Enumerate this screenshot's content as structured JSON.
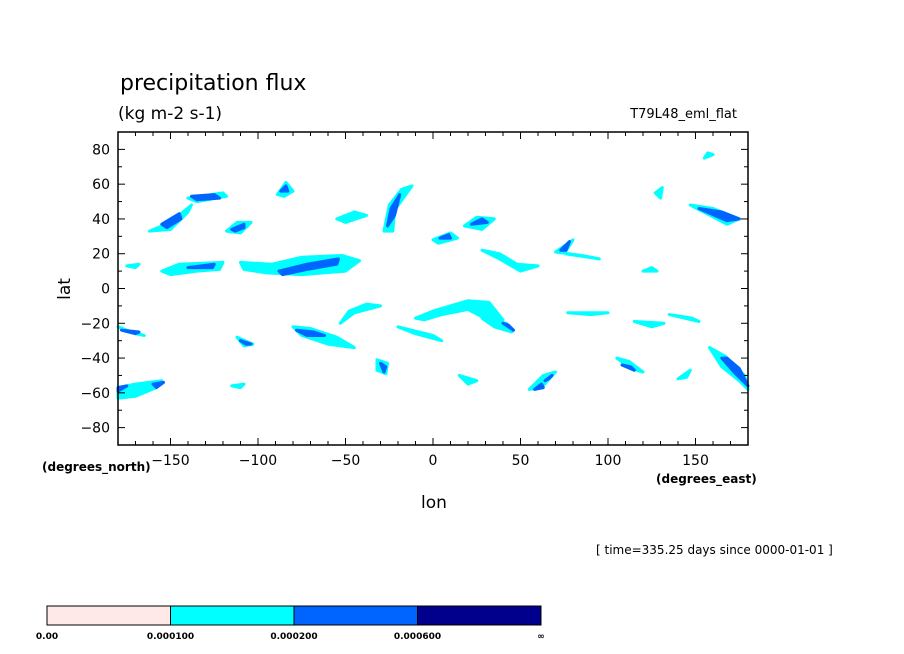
{
  "chart_data": {
    "type": "contour-map",
    "title": "precipitation flux",
    "units": "(kg m-2 s-1)",
    "run_label": "T79L48_eml_flat",
    "xlabel": "lon",
    "ylabel": "lat",
    "x_units_label": "(degrees_east)",
    "y_units_label": "(degrees_north)",
    "time_label": "[ time=335.25 days since 0000-01-01 ]",
    "xlim": [
      -180,
      180
    ],
    "ylim": [
      -90,
      90
    ],
    "x_ticks": [
      -150,
      -100,
      -50,
      0,
      50,
      100,
      150
    ],
    "x_tick_labels": [
      "−150",
      "−100",
      "−50",
      "0",
      "50",
      "100",
      "150"
    ],
    "y_ticks": [
      80,
      60,
      40,
      20,
      0,
      -20,
      -40,
      -60,
      -80
    ],
    "y_tick_labels": [
      "80",
      "60",
      "40",
      "20",
      "0",
      "−20",
      "−40",
      "−60",
      "−80"
    ],
    "grid": false,
    "colorbar": {
      "levels": [
        "0.00",
        "0.000100",
        "0.000200",
        "0.000600",
        "∞"
      ],
      "colors": [
        "#ffe8e8",
        "#00ffff",
        "#0064ff",
        "#00008c"
      ]
    },
    "regions": [
      {
        "level": 1,
        "pts": [
          [
            -140,
            52
          ],
          [
            -120,
            55
          ],
          [
            -118,
            53
          ],
          [
            -135,
            50
          ]
        ]
      },
      {
        "level": 2,
        "pts": [
          [
            -138,
            53
          ],
          [
            -125,
            54
          ],
          [
            -122,
            52
          ],
          [
            -135,
            51
          ]
        ]
      },
      {
        "level": 1,
        "pts": [
          [
            -162,
            33
          ],
          [
            -150,
            38
          ],
          [
            -138,
            48
          ],
          [
            -140,
            44
          ],
          [
            -150,
            34
          ]
        ]
      },
      {
        "level": 2,
        "pts": [
          [
            -155,
            37
          ],
          [
            -145,
            43
          ],
          [
            -144,
            40
          ],
          [
            -152,
            35
          ]
        ]
      },
      {
        "level": 1,
        "pts": [
          [
            -118,
            33
          ],
          [
            -112,
            38
          ],
          [
            -104,
            38
          ],
          [
            -110,
            32
          ]
        ]
      },
      {
        "level": 2,
        "pts": [
          [
            -115,
            34
          ],
          [
            -108,
            37
          ],
          [
            -108,
            35
          ],
          [
            -113,
            33
          ]
        ]
      },
      {
        "level": 1,
        "pts": [
          [
            -89,
            54
          ],
          [
            -84,
            61
          ],
          [
            -80,
            56
          ],
          [
            -85,
            53
          ]
        ]
      },
      {
        "level": 2,
        "pts": [
          [
            -87,
            56
          ],
          [
            -84,
            59
          ],
          [
            -83,
            56
          ]
        ]
      },
      {
        "level": 1,
        "pts": [
          [
            -155,
            10
          ],
          [
            -145,
            14
          ],
          [
            -120,
            15
          ],
          [
            -122,
            11
          ],
          [
            -135,
            10
          ],
          [
            -150,
            8
          ]
        ]
      },
      {
        "level": 2,
        "pts": [
          [
            -140,
            12
          ],
          [
            -125,
            14
          ],
          [
            -126,
            12
          ]
        ]
      },
      {
        "level": 1,
        "pts": [
          [
            -110,
            15
          ],
          [
            -92,
            14
          ],
          [
            -75,
            18
          ],
          [
            -52,
            19
          ],
          [
            -42,
            16
          ],
          [
            -50,
            10
          ],
          [
            -75,
            8
          ],
          [
            -95,
            9
          ],
          [
            -108,
            11
          ]
        ]
      },
      {
        "level": 2,
        "pts": [
          [
            -88,
            10
          ],
          [
            -72,
            14
          ],
          [
            -54,
            17
          ],
          [
            -55,
            14
          ],
          [
            -72,
            11
          ],
          [
            -86,
            8
          ]
        ]
      },
      {
        "level": 1,
        "pts": [
          [
            -28,
            33
          ],
          [
            -25,
            48
          ],
          [
            -18,
            57
          ],
          [
            -12,
            59
          ],
          [
            -22,
            45
          ],
          [
            -23,
            33
          ]
        ]
      },
      {
        "level": 2,
        "pts": [
          [
            -26,
            36
          ],
          [
            -24,
            46
          ],
          [
            -19,
            54
          ],
          [
            -22,
            42
          ]
        ]
      },
      {
        "level": 1,
        "pts": [
          [
            -55,
            40
          ],
          [
            -45,
            44
          ],
          [
            -38,
            42
          ],
          [
            -50,
            38
          ]
        ]
      },
      {
        "level": 1,
        "pts": [
          [
            0,
            28
          ],
          [
            10,
            32
          ],
          [
            14,
            29
          ],
          [
            3,
            26
          ]
        ]
      },
      {
        "level": 2,
        "pts": [
          [
            4,
            29
          ],
          [
            9,
            31
          ],
          [
            10,
            29
          ]
        ]
      },
      {
        "level": 1,
        "pts": [
          [
            18,
            36
          ],
          [
            25,
            41
          ],
          [
            35,
            40
          ],
          [
            28,
            34
          ]
        ]
      },
      {
        "level": 2,
        "pts": [
          [
            22,
            37
          ],
          [
            28,
            40
          ],
          [
            31,
            38
          ]
        ]
      },
      {
        "level": 1,
        "pts": [
          [
            28,
            22
          ],
          [
            38,
            17
          ],
          [
            50,
            10
          ],
          [
            60,
            13
          ],
          [
            48,
            14
          ],
          [
            38,
            20
          ]
        ]
      },
      {
        "level": 1,
        "pts": [
          [
            70,
            21
          ],
          [
            80,
            28
          ],
          [
            75,
            20
          ],
          [
            95,
            17
          ],
          [
            85,
            19
          ]
        ]
      },
      {
        "level": 2,
        "pts": [
          [
            73,
            22
          ],
          [
            78,
            27
          ],
          [
            76,
            22
          ]
        ]
      },
      {
        "level": 1,
        "pts": [
          [
            120,
            10
          ],
          [
            125,
            12
          ],
          [
            128,
            10
          ]
        ]
      },
      {
        "level": 1,
        "pts": [
          [
            147,
            48
          ],
          [
            160,
            46
          ],
          [
            175,
            40
          ],
          [
            168,
            37
          ]
        ]
      },
      {
        "level": 2,
        "pts": [
          [
            152,
            46
          ],
          [
            165,
            44
          ],
          [
            175,
            40
          ],
          [
            168,
            39
          ]
        ]
      },
      {
        "level": 1,
        "pts": [
          [
            -170,
            12
          ],
          [
            -175,
            13
          ],
          [
            -168,
            14
          ]
        ]
      },
      {
        "level": 1,
        "pts": [
          [
            -53,
            -20
          ],
          [
            -45,
            -14
          ],
          [
            -30,
            -10
          ],
          [
            -38,
            -9
          ],
          [
            -48,
            -13
          ]
        ]
      },
      {
        "level": 1,
        "pts": [
          [
            -10,
            -17
          ],
          [
            0,
            -13
          ],
          [
            20,
            -7
          ],
          [
            32,
            -8
          ],
          [
            40,
            -18
          ],
          [
            35,
            -20
          ],
          [
            20,
            -12
          ],
          [
            5,
            -15
          ],
          [
            -5,
            -18
          ]
        ]
      },
      {
        "level": 1,
        "pts": [
          [
            28,
            -17
          ],
          [
            35,
            -22
          ],
          [
            45,
            -25
          ],
          [
            42,
            -20
          ]
        ]
      },
      {
        "level": 2,
        "pts": [
          [
            40,
            -20
          ],
          [
            46,
            -24
          ],
          [
            43,
            -21
          ]
        ]
      },
      {
        "level": 1,
        "pts": [
          [
            -180,
            -22
          ],
          [
            -170,
            -26
          ],
          [
            -165,
            -27
          ],
          [
            -175,
            -24
          ]
        ]
      },
      {
        "level": 2,
        "pts": [
          [
            -178,
            -24
          ],
          [
            -170,
            -26
          ],
          [
            -168,
            -25
          ]
        ]
      },
      {
        "level": 1,
        "pts": [
          [
            -112,
            -28
          ],
          [
            -103,
            -32
          ],
          [
            -108,
            -33
          ]
        ]
      },
      {
        "level": 2,
        "pts": [
          [
            -110,
            -30
          ],
          [
            -104,
            -32
          ],
          [
            -107,
            -32
          ]
        ]
      },
      {
        "level": 1,
        "pts": [
          [
            -80,
            -22
          ],
          [
            -70,
            -23
          ],
          [
            -55,
            -28
          ],
          [
            -45,
            -34
          ],
          [
            -60,
            -32
          ],
          [
            -75,
            -27
          ]
        ]
      },
      {
        "level": 2,
        "pts": [
          [
            -78,
            -24
          ],
          [
            -68,
            -25
          ],
          [
            -62,
            -27
          ],
          [
            -72,
            -27
          ]
        ]
      },
      {
        "level": 1,
        "pts": [
          [
            -20,
            -22
          ],
          [
            -10,
            -26
          ],
          [
            5,
            -30
          ],
          [
            0,
            -27
          ]
        ]
      },
      {
        "level": 1,
        "pts": [
          [
            -32,
            -41
          ],
          [
            -26,
            -43
          ],
          [
            -27,
            -49
          ],
          [
            -32,
            -47
          ]
        ]
      },
      {
        "level": 2,
        "pts": [
          [
            -30,
            -43
          ],
          [
            -27,
            -45
          ],
          [
            -28,
            -48
          ]
        ]
      },
      {
        "level": 1,
        "pts": [
          [
            -115,
            -56
          ],
          [
            -110,
            -57
          ],
          [
            -108,
            -55
          ]
        ]
      },
      {
        "level": 1,
        "pts": [
          [
            -180,
            -57
          ],
          [
            -170,
            -55
          ],
          [
            -155,
            -53
          ],
          [
            -158,
            -57
          ],
          [
            -170,
            -62
          ],
          [
            -180,
            -63
          ]
        ]
      },
      {
        "level": 2,
        "pts": [
          [
            -160,
            -55
          ],
          [
            -154,
            -54
          ],
          [
            -158,
            -57
          ]
        ]
      },
      {
        "level": 2,
        "pts": [
          [
            -180,
            -57
          ],
          [
            -175,
            -56
          ],
          [
            -180,
            -59
          ]
        ]
      },
      {
        "level": 1,
        "pts": [
          [
            15,
            -50
          ],
          [
            25,
            -53
          ],
          [
            20,
            -55
          ]
        ]
      },
      {
        "level": 1,
        "pts": [
          [
            55,
            -58
          ],
          [
            62,
            -57
          ],
          [
            70,
            -48
          ],
          [
            63,
            -50
          ]
        ]
      },
      {
        "level": 2,
        "pts": [
          [
            58,
            -58
          ],
          [
            63,
            -57
          ],
          [
            62,
            -55
          ]
        ]
      },
      {
        "level": 2,
        "pts": [
          [
            64,
            -53
          ],
          [
            68,
            -50
          ],
          [
            66,
            -52
          ]
        ]
      },
      {
        "level": 1,
        "pts": [
          [
            105,
            -40
          ],
          [
            113,
            -46
          ],
          [
            120,
            -48
          ],
          [
            112,
            -42
          ]
        ]
      },
      {
        "level": 2,
        "pts": [
          [
            108,
            -44
          ],
          [
            115,
            -47
          ],
          [
            113,
            -45
          ]
        ]
      },
      {
        "level": 1,
        "pts": [
          [
            140,
            -52
          ],
          [
            147,
            -47
          ],
          [
            145,
            -51
          ]
        ]
      },
      {
        "level": 1,
        "pts": [
          [
            158,
            -34
          ],
          [
            165,
            -45
          ],
          [
            175,
            -53
          ],
          [
            180,
            -58
          ],
          [
            178,
            -50
          ],
          [
            167,
            -39
          ]
        ]
      },
      {
        "level": 2,
        "pts": [
          [
            165,
            -40
          ],
          [
            172,
            -48
          ],
          [
            180,
            -56
          ],
          [
            175,
            -46
          ],
          [
            168,
            -40
          ]
        ]
      },
      {
        "level": 1,
        "pts": [
          [
            115,
            -19
          ],
          [
            125,
            -22
          ],
          [
            132,
            -20
          ]
        ]
      },
      {
        "level": 1,
        "pts": [
          [
            135,
            -15
          ],
          [
            148,
            -17
          ],
          [
            152,
            -19
          ]
        ]
      },
      {
        "level": 1,
        "pts": [
          [
            77,
            -14
          ],
          [
            90,
            -15
          ],
          [
            100,
            -14
          ]
        ]
      },
      {
        "level": 1,
        "pts": [
          [
            155,
            75
          ],
          [
            160,
            77
          ],
          [
            157,
            78
          ]
        ]
      },
      {
        "level": 1,
        "pts": [
          [
            127,
            55
          ],
          [
            131,
            58
          ],
          [
            130,
            52
          ]
        ]
      }
    ]
  }
}
